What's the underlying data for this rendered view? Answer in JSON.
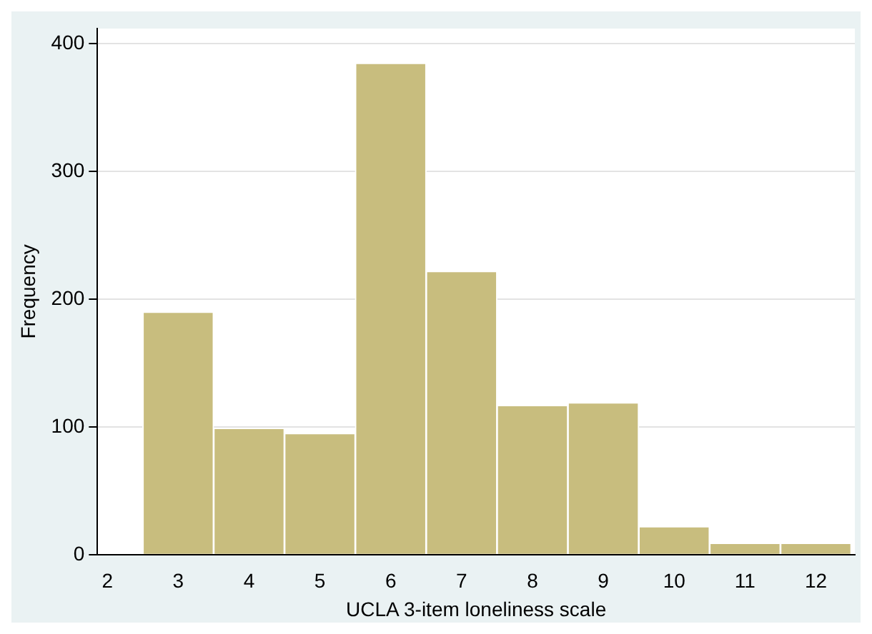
{
  "chart_data": {
    "type": "histogram",
    "xlabel": "UCLA 3-item loneliness scale",
    "ylabel": "Frequency",
    "bins": [
      2.5,
      3.5,
      4.5,
      5.5,
      6.5,
      7.5,
      8.5,
      9.5,
      10.5,
      11.5,
      12.5
    ],
    "values": [
      190,
      99,
      95,
      385,
      222,
      117,
      119,
      22,
      9,
      9
    ],
    "color": "#c8bd7e",
    "xlim": [
      1.86,
      12.55
    ],
    "xticks": [
      2,
      3,
      4,
      5,
      6,
      7,
      8,
      9,
      10,
      11,
      12
    ],
    "ylim": [
      0,
      412
    ],
    "yticks": [
      0,
      100,
      200,
      300,
      400
    ],
    "grid": "y",
    "legend": false
  }
}
